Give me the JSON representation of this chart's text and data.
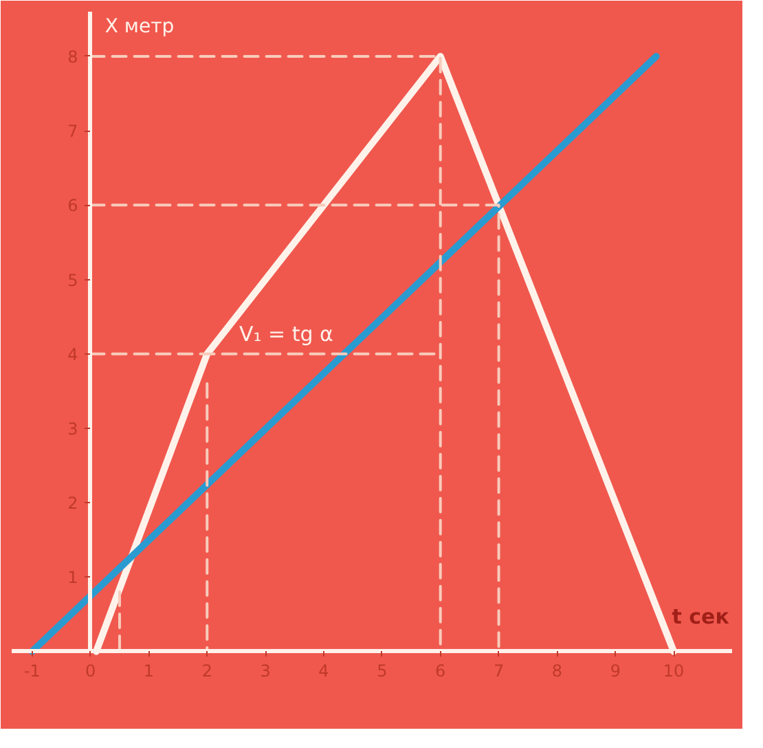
{
  "chart_data": {
    "type": "line",
    "xlabel": "t сек",
    "ylabel": "X метр",
    "xlim": [
      -1.35,
      11.0
    ],
    "ylim": [
      -0.9,
      8.6
    ],
    "xticks": [
      -1,
      0,
      1,
      2,
      3,
      4,
      5,
      6,
      7,
      8,
      9,
      10
    ],
    "yticks": [
      1,
      2,
      3,
      4,
      5,
      6,
      7,
      8
    ],
    "grid": false,
    "marker": "none",
    "series": [
      {
        "color": "#fff2ea",
        "x": [
          0.1,
          2,
          6,
          10
        ],
        "values": [
          0,
          4,
          8,
          0
        ],
        "line_style": "solid"
      },
      {
        "color": "#2a9bd0",
        "x": [
          -1,
          9.7
        ],
        "values": [
          0,
          8.0
        ],
        "line_style": "solid"
      },
      {
        "color": "#f8cbbb",
        "x": [
          0,
          6,
          6
        ],
        "values": [
          8,
          8,
          0
        ],
        "line_style": "dashed"
      },
      {
        "color": "#f8cbbb",
        "x": [
          0,
          7,
          7
        ],
        "values": [
          6,
          6,
          0
        ],
        "line_style": "dashed"
      },
      {
        "color": "#f8cbbb",
        "x": [
          0,
          6
        ],
        "values": [
          4,
          4
        ],
        "line_style": "dashed"
      },
      {
        "color": "#f8cbbb",
        "x": [
          2,
          2
        ],
        "values": [
          3.6,
          0
        ],
        "line_style": "dashed"
      },
      {
        "color": "#f8cbbb",
        "x": [
          0.5,
          0.5
        ],
        "values": [
          0.8,
          0
        ],
        "line_style": "dashed"
      }
    ],
    "annotations": [
      {
        "text": "V₁ = tg α",
        "x": 2,
        "y": 4
      }
    ]
  }
}
